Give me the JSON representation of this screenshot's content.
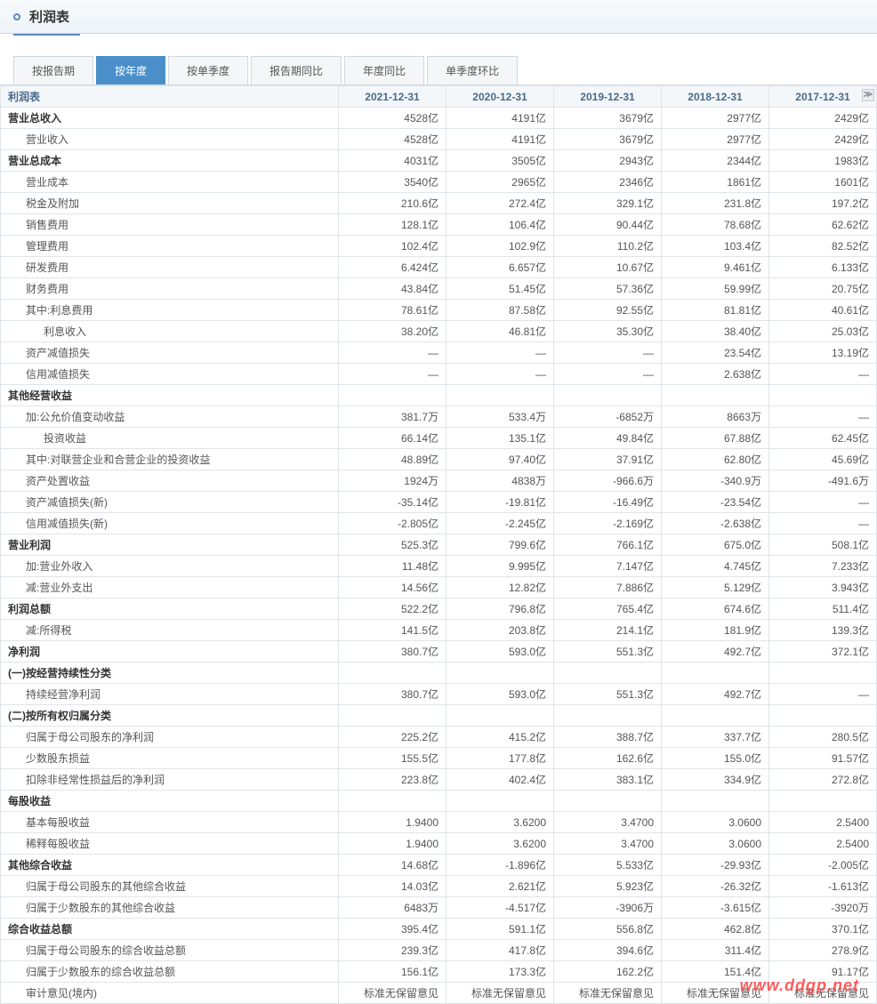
{
  "header": {
    "title": "利润表"
  },
  "tabs": {
    "items": [
      {
        "label": "按报告期",
        "active": false
      },
      {
        "label": "按年度",
        "active": true
      },
      {
        "label": "按单季度",
        "active": false
      },
      {
        "label": "报告期同比",
        "active": false
      },
      {
        "label": "年度同比",
        "active": false
      },
      {
        "label": "单季度环比",
        "active": false
      }
    ]
  },
  "table": {
    "title": "利润表",
    "columns": [
      "2021-12-31",
      "2020-12-31",
      "2019-12-31",
      "2018-12-31",
      "2017-12-31"
    ],
    "rows": [
      {
        "label": "营业总收入",
        "bold": true,
        "indent": 0,
        "values": [
          "4528亿",
          "4191亿",
          "3679亿",
          "2977亿",
          "2429亿"
        ]
      },
      {
        "label": "营业收入",
        "indent": 1,
        "values": [
          "4528亿",
          "4191亿",
          "3679亿",
          "2977亿",
          "2429亿"
        ]
      },
      {
        "label": "营业总成本",
        "bold": true,
        "indent": 0,
        "values": [
          "4031亿",
          "3505亿",
          "2943亿",
          "2344亿",
          "1983亿"
        ]
      },
      {
        "label": "营业成本",
        "indent": 1,
        "values": [
          "3540亿",
          "2965亿",
          "2346亿",
          "1861亿",
          "1601亿"
        ]
      },
      {
        "label": "税金及附加",
        "indent": 1,
        "values": [
          "210.6亿",
          "272.4亿",
          "329.1亿",
          "231.8亿",
          "197.2亿"
        ]
      },
      {
        "label": "销售费用",
        "indent": 1,
        "values": [
          "128.1亿",
          "106.4亿",
          "90.44亿",
          "78.68亿",
          "62.62亿"
        ]
      },
      {
        "label": "管理费用",
        "indent": 1,
        "values": [
          "102.4亿",
          "102.9亿",
          "110.2亿",
          "103.4亿",
          "82.52亿"
        ]
      },
      {
        "label": "研发费用",
        "indent": 1,
        "values": [
          "6.424亿",
          "6.657亿",
          "10.67亿",
          "9.461亿",
          "6.133亿"
        ]
      },
      {
        "label": "财务费用",
        "indent": 1,
        "values": [
          "43.84亿",
          "51.45亿",
          "57.36亿",
          "59.99亿",
          "20.75亿"
        ]
      },
      {
        "label": "其中:利息费用",
        "indent": 1,
        "values": [
          "78.61亿",
          "87.58亿",
          "92.55亿",
          "81.81亿",
          "40.61亿"
        ]
      },
      {
        "label": "利息收入",
        "indent": 2,
        "values": [
          "38.20亿",
          "46.81亿",
          "35.30亿",
          "38.40亿",
          "25.03亿"
        ]
      },
      {
        "label": "资产减值损失",
        "indent": 1,
        "values": [
          "—",
          "—",
          "—",
          "23.54亿",
          "13.19亿"
        ]
      },
      {
        "label": "信用减值损失",
        "indent": 1,
        "values": [
          "—",
          "—",
          "—",
          "2.638亿",
          "—"
        ]
      },
      {
        "label": "其他经营收益",
        "bold": true,
        "indent": 0,
        "values": [
          "",
          "",
          "",
          "",
          ""
        ]
      },
      {
        "label": "加:公允价值变动收益",
        "indent": 1,
        "values": [
          "381.7万",
          "533.4万",
          "-6852万",
          "8663万",
          "—"
        ]
      },
      {
        "label": "投资收益",
        "indent": 2,
        "values": [
          "66.14亿",
          "135.1亿",
          "49.84亿",
          "67.88亿",
          "62.45亿"
        ]
      },
      {
        "label": "其中:对联营企业和合营企业的投资收益",
        "indent": 1,
        "values": [
          "48.89亿",
          "97.40亿",
          "37.91亿",
          "62.80亿",
          "45.69亿"
        ]
      },
      {
        "label": "资产处置收益",
        "indent": 1,
        "values": [
          "1924万",
          "4838万",
          "-966.6万",
          "-340.9万",
          "-491.6万"
        ]
      },
      {
        "label": "资产减值损失(新)",
        "indent": 1,
        "values": [
          "-35.14亿",
          "-19.81亿",
          "-16.49亿",
          "-23.54亿",
          "—"
        ]
      },
      {
        "label": "信用减值损失(新)",
        "indent": 1,
        "values": [
          "-2.805亿",
          "-2.245亿",
          "-2.169亿",
          "-2.638亿",
          "—"
        ]
      },
      {
        "label": "营业利润",
        "bold": true,
        "indent": 0,
        "values": [
          "525.3亿",
          "799.6亿",
          "766.1亿",
          "675.0亿",
          "508.1亿"
        ]
      },
      {
        "label": "加:营业外收入",
        "indent": 1,
        "values": [
          "11.48亿",
          "9.995亿",
          "7.147亿",
          "4.745亿",
          "7.233亿"
        ]
      },
      {
        "label": "减:营业外支出",
        "indent": 1,
        "values": [
          "14.56亿",
          "12.82亿",
          "7.886亿",
          "5.129亿",
          "3.943亿"
        ]
      },
      {
        "label": "利润总额",
        "bold": true,
        "indent": 0,
        "values": [
          "522.2亿",
          "796.8亿",
          "765.4亿",
          "674.6亿",
          "511.4亿"
        ]
      },
      {
        "label": "减:所得税",
        "indent": 1,
        "values": [
          "141.5亿",
          "203.8亿",
          "214.1亿",
          "181.9亿",
          "139.3亿"
        ]
      },
      {
        "label": "净利润",
        "bold": true,
        "indent": 0,
        "values": [
          "380.7亿",
          "593.0亿",
          "551.3亿",
          "492.7亿",
          "372.1亿"
        ]
      },
      {
        "label": "(一)按经营持续性分类",
        "bold": true,
        "indent": 0,
        "values": [
          "",
          "",
          "",
          "",
          ""
        ]
      },
      {
        "label": "持续经营净利润",
        "indent": 1,
        "values": [
          "380.7亿",
          "593.0亿",
          "551.3亿",
          "492.7亿",
          "—"
        ]
      },
      {
        "label": "(二)按所有权归属分类",
        "bold": true,
        "indent": 0,
        "values": [
          "",
          "",
          "",
          "",
          ""
        ]
      },
      {
        "label": "归属于母公司股东的净利润",
        "indent": 1,
        "values": [
          "225.2亿",
          "415.2亿",
          "388.7亿",
          "337.7亿",
          "280.5亿"
        ]
      },
      {
        "label": "少数股东损益",
        "indent": 1,
        "values": [
          "155.5亿",
          "177.8亿",
          "162.6亿",
          "155.0亿",
          "91.57亿"
        ]
      },
      {
        "label": "扣除非经常性损益后的净利润",
        "indent": 1,
        "values": [
          "223.8亿",
          "402.4亿",
          "383.1亿",
          "334.9亿",
          "272.8亿"
        ]
      },
      {
        "label": "每股收益",
        "bold": true,
        "indent": 0,
        "values": [
          "",
          "",
          "",
          "",
          ""
        ]
      },
      {
        "label": "基本每股收益",
        "indent": 1,
        "values": [
          "1.9400",
          "3.6200",
          "3.4700",
          "3.0600",
          "2.5400"
        ]
      },
      {
        "label": "稀释每股收益",
        "indent": 1,
        "values": [
          "1.9400",
          "3.6200",
          "3.4700",
          "3.0600",
          "2.5400"
        ]
      },
      {
        "label": "其他综合收益",
        "bold": true,
        "indent": 0,
        "values": [
          "14.68亿",
          "-1.896亿",
          "5.533亿",
          "-29.93亿",
          "-2.005亿"
        ]
      },
      {
        "label": "归属于母公司股东的其他综合收益",
        "indent": 1,
        "values": [
          "14.03亿",
          "2.621亿",
          "5.923亿",
          "-26.32亿",
          "-1.613亿"
        ]
      },
      {
        "label": "归属于少数股东的其他综合收益",
        "indent": 1,
        "values": [
          "6483万",
          "-4.517亿",
          "-3906万",
          "-3.615亿",
          "-3920万"
        ]
      },
      {
        "label": "综合收益总额",
        "bold": true,
        "indent": 0,
        "values": [
          "395.4亿",
          "591.1亿",
          "556.8亿",
          "462.8亿",
          "370.1亿"
        ]
      },
      {
        "label": "归属于母公司股东的综合收益总额",
        "indent": 1,
        "values": [
          "239.3亿",
          "417.8亿",
          "394.6亿",
          "311.4亿",
          "278.9亿"
        ]
      },
      {
        "label": "归属于少数股东的综合收益总额",
        "indent": 1,
        "values": [
          "156.1亿",
          "173.3亿",
          "162.2亿",
          "151.4亿",
          "91.17亿"
        ]
      },
      {
        "label": "审计意见(境内)",
        "indent": 1,
        "values": [
          "标准无保留意见",
          "标准无保留意见",
          "标准无保留意见",
          "标准无保留意见",
          "标准无保留意见"
        ]
      }
    ]
  },
  "watermark": "www.ddgp.net",
  "colors": {
    "header_bg_top": "#f8fbfd",
    "header_bg_bottom": "#edf3f8",
    "accent": "#5a8bbd",
    "tab_active": "#4a8fc9",
    "border": "#e0e5ea",
    "th_bg": "#f4f7fa",
    "th_color": "#4a6a8a",
    "watermark": "#ff4040"
  }
}
